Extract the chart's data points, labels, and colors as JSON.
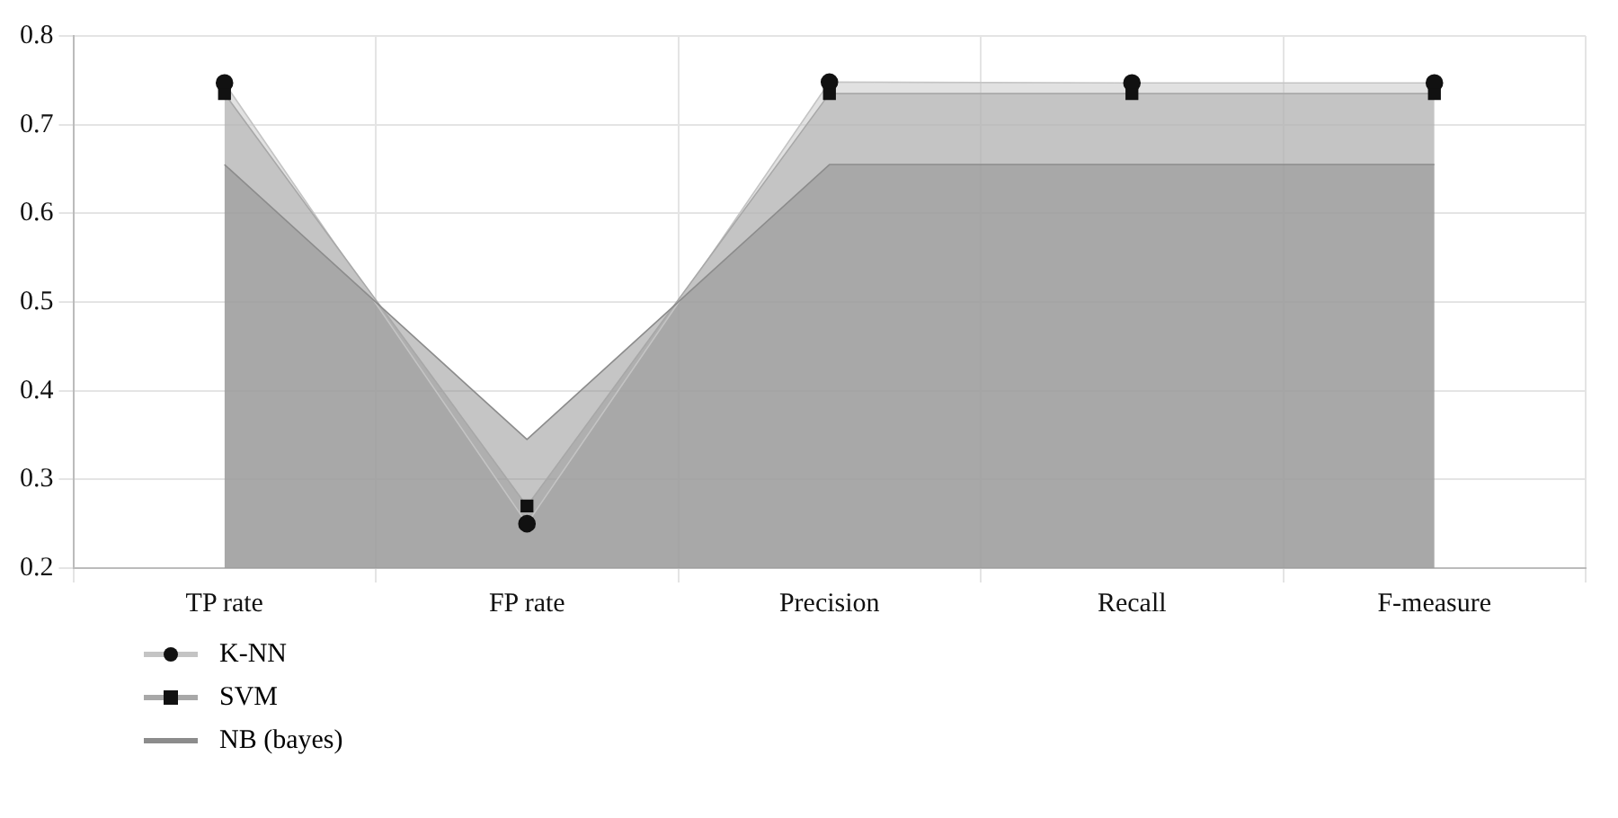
{
  "chart_data": {
    "type": "area",
    "categories": [
      "TP rate",
      "FP rate",
      "Precision",
      "Recall",
      "F-measure"
    ],
    "series": [
      {
        "name": "K-NN",
        "color": "#c4c4c4",
        "marker": "circle",
        "values": [
          0.747,
          0.25,
          0.748,
          0.747,
          0.747
        ]
      },
      {
        "name": "SVM",
        "color": "#a8a8a8",
        "marker": "square",
        "values": [
          0.735,
          0.27,
          0.735,
          0.735,
          0.735
        ]
      },
      {
        "name": "NB (bayes)",
        "color": "#8c8c8c",
        "marker": "none",
        "values": [
          0.655,
          0.345,
          0.655,
          0.655,
          0.655
        ]
      }
    ],
    "ylim": [
      0.2,
      0.8
    ],
    "yticks": [
      0.2,
      0.3,
      0.4,
      0.5,
      0.6,
      0.7,
      0.8
    ],
    "grid": true,
    "legend": "bottom left"
  }
}
